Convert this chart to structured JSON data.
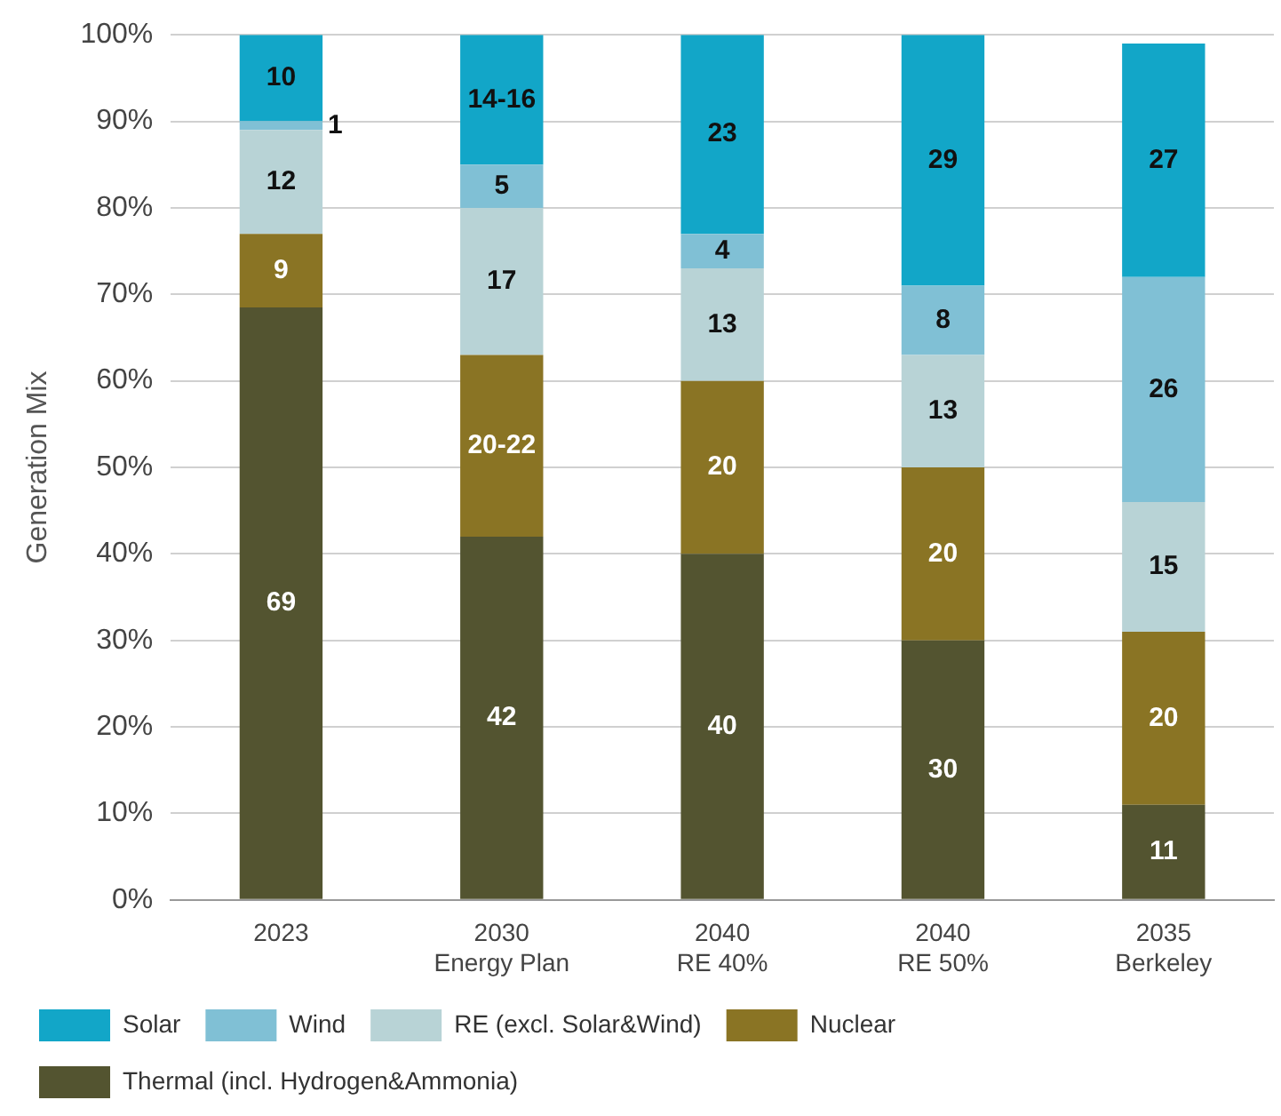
{
  "chart_data": {
    "type": "bar",
    "stacked": true,
    "ylabel": "Generation Mix",
    "categories": [
      "2023",
      "2030\nEnergy Plan",
      "2040\nRE 40%",
      "2040\nRE 50%",
      "2035\nBerkeley"
    ],
    "series": [
      {
        "name": "Thermal (incl. Hydrogen&Ammonia)",
        "color": "#535430",
        "values": [
          68.5,
          42,
          40,
          30,
          11
        ],
        "value_labels": [
          "69",
          "42",
          "40",
          "30",
          "11"
        ]
      },
      {
        "name": "Nuclear",
        "color": "#8a7424",
        "values": [
          8.5,
          21,
          20,
          20,
          20
        ],
        "value_labels": [
          "9",
          "20-22",
          "20",
          "20",
          "20"
        ]
      },
      {
        "name": "RE (excl. Solar&Wind)",
        "color": "#b8d3d6",
        "values": [
          12,
          17,
          13,
          13,
          15
        ],
        "value_labels": [
          "12",
          "17",
          "13",
          "13",
          "15"
        ]
      },
      {
        "name": "Wind",
        "color": "#80c0d5",
        "values": [
          1,
          5,
          4,
          8,
          26
        ],
        "value_labels": [
          "1",
          "5",
          "4",
          "8",
          "26"
        ]
      },
      {
        "name": "Solar",
        "color": "#12a6c8",
        "values": [
          10,
          15,
          23,
          29,
          27
        ],
        "value_labels": [
          "10",
          "14-16",
          "23",
          "29",
          "27"
        ]
      }
    ],
    "ylim": [
      0,
      100
    ],
    "yticks": [
      {
        "value": 0,
        "label": "0%"
      },
      {
        "value": 10,
        "label": "10%"
      },
      {
        "value": 20,
        "label": "20%"
      },
      {
        "value": 30,
        "label": "30%"
      },
      {
        "value": 40,
        "label": "40%"
      },
      {
        "value": 50,
        "label": "50%"
      },
      {
        "value": 60,
        "label": "60%"
      },
      {
        "value": 70,
        "label": "70%"
      },
      {
        "value": 80,
        "label": "80%"
      },
      {
        "value": 90,
        "label": "90%"
      },
      {
        "value": 100,
        "label": "100%"
      }
    ],
    "grid": "y",
    "legend": "bottom left"
  }
}
